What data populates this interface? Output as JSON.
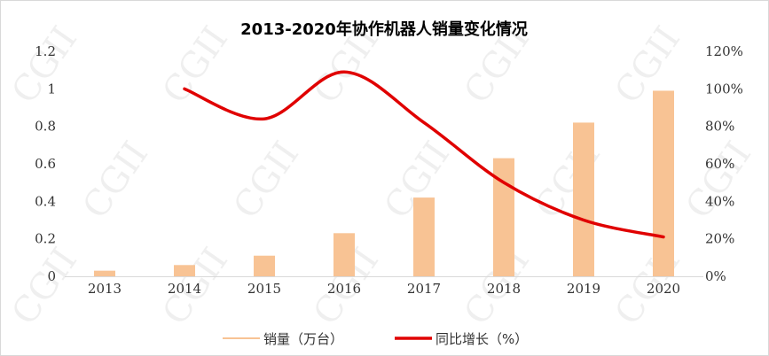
{
  "chart_data": {
    "type": "bar",
    "title": "2013-2020年协作机器人销量变化情况",
    "categories": [
      "2013",
      "2014",
      "2015",
      "2016",
      "2017",
      "2018",
      "2019",
      "2020"
    ],
    "series": [
      {
        "name": "销量（万台）",
        "type": "bar",
        "axis": "left",
        "color": "#f8c394",
        "values": [
          0.03,
          0.06,
          0.11,
          0.23,
          0.42,
          0.63,
          0.82,
          0.99
        ]
      },
      {
        "name": "同比增长（%）",
        "type": "line",
        "axis": "right",
        "color": "#e00000",
        "values": [
          null,
          100,
          84,
          109,
          82,
          50,
          30,
          21
        ]
      }
    ],
    "y_left": {
      "ticks": [
        "0",
        "0.2",
        "0.4",
        "0.6",
        "0.8",
        "1",
        "1.2"
      ],
      "lim": [
        0,
        1.2
      ]
    },
    "y_right": {
      "ticks": [
        "0%",
        "20%",
        "40%",
        "60%",
        "80%",
        "100%",
        "120%"
      ],
      "lim": [
        0,
        120
      ]
    },
    "legend_position": "bottom",
    "grid": false,
    "watermark": "CGII"
  }
}
